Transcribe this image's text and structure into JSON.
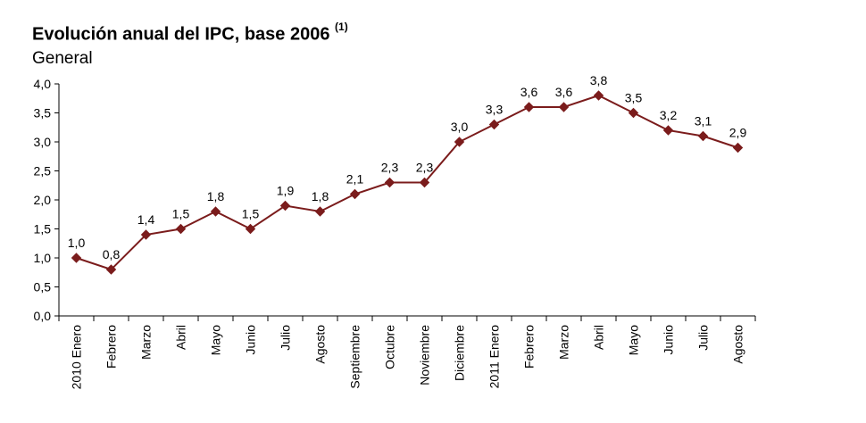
{
  "chart_data": {
    "type": "line",
    "title": "Evolución anual del IPC, base 2006",
    "title_superscript": "(1)",
    "subtitle": "General",
    "categories": [
      "2010 Enero",
      "Febrero",
      "Marzo",
      "Abril",
      "Mayo",
      "Junio",
      "Julio",
      "Agosto",
      "Septiembre",
      "Octubre",
      "Noviembre",
      "Diciembre",
      "2011 Enero",
      "Febrero",
      "Marzo",
      "Abril",
      "Mayo",
      "Junio",
      "Julio",
      "Agosto"
    ],
    "values": [
      1.0,
      0.8,
      1.4,
      1.5,
      1.8,
      1.5,
      1.9,
      1.8,
      2.1,
      2.3,
      2.3,
      3.0,
      3.3,
      3.6,
      3.6,
      3.8,
      3.5,
      3.2,
      3.1,
      2.9
    ],
    "value_labels": [
      "1,0",
      "0,8",
      "1,4",
      "1,5",
      "1,8",
      "1,5",
      "1,9",
      "1,8",
      "2,1",
      "2,3",
      "2,3",
      "3,0",
      "3,3",
      "3,6",
      "3,6",
      "3,8",
      "3,5",
      "3,2",
      "3,1",
      "2,9"
    ],
    "yticks": [
      0,
      0.5,
      1,
      1.5,
      2,
      2.5,
      3,
      3.5,
      4
    ],
    "ytick_labels": [
      "0,0",
      "0,5",
      "1,0",
      "1,5",
      "2,0",
      "2,5",
      "3,0",
      "3,5",
      "4,0"
    ],
    "ylim": [
      0,
      4
    ],
    "grid": false,
    "legend": "none",
    "colors": {
      "line": "#7b1c1c",
      "marker": "#7b1c1c",
      "axis": "#000000"
    }
  }
}
